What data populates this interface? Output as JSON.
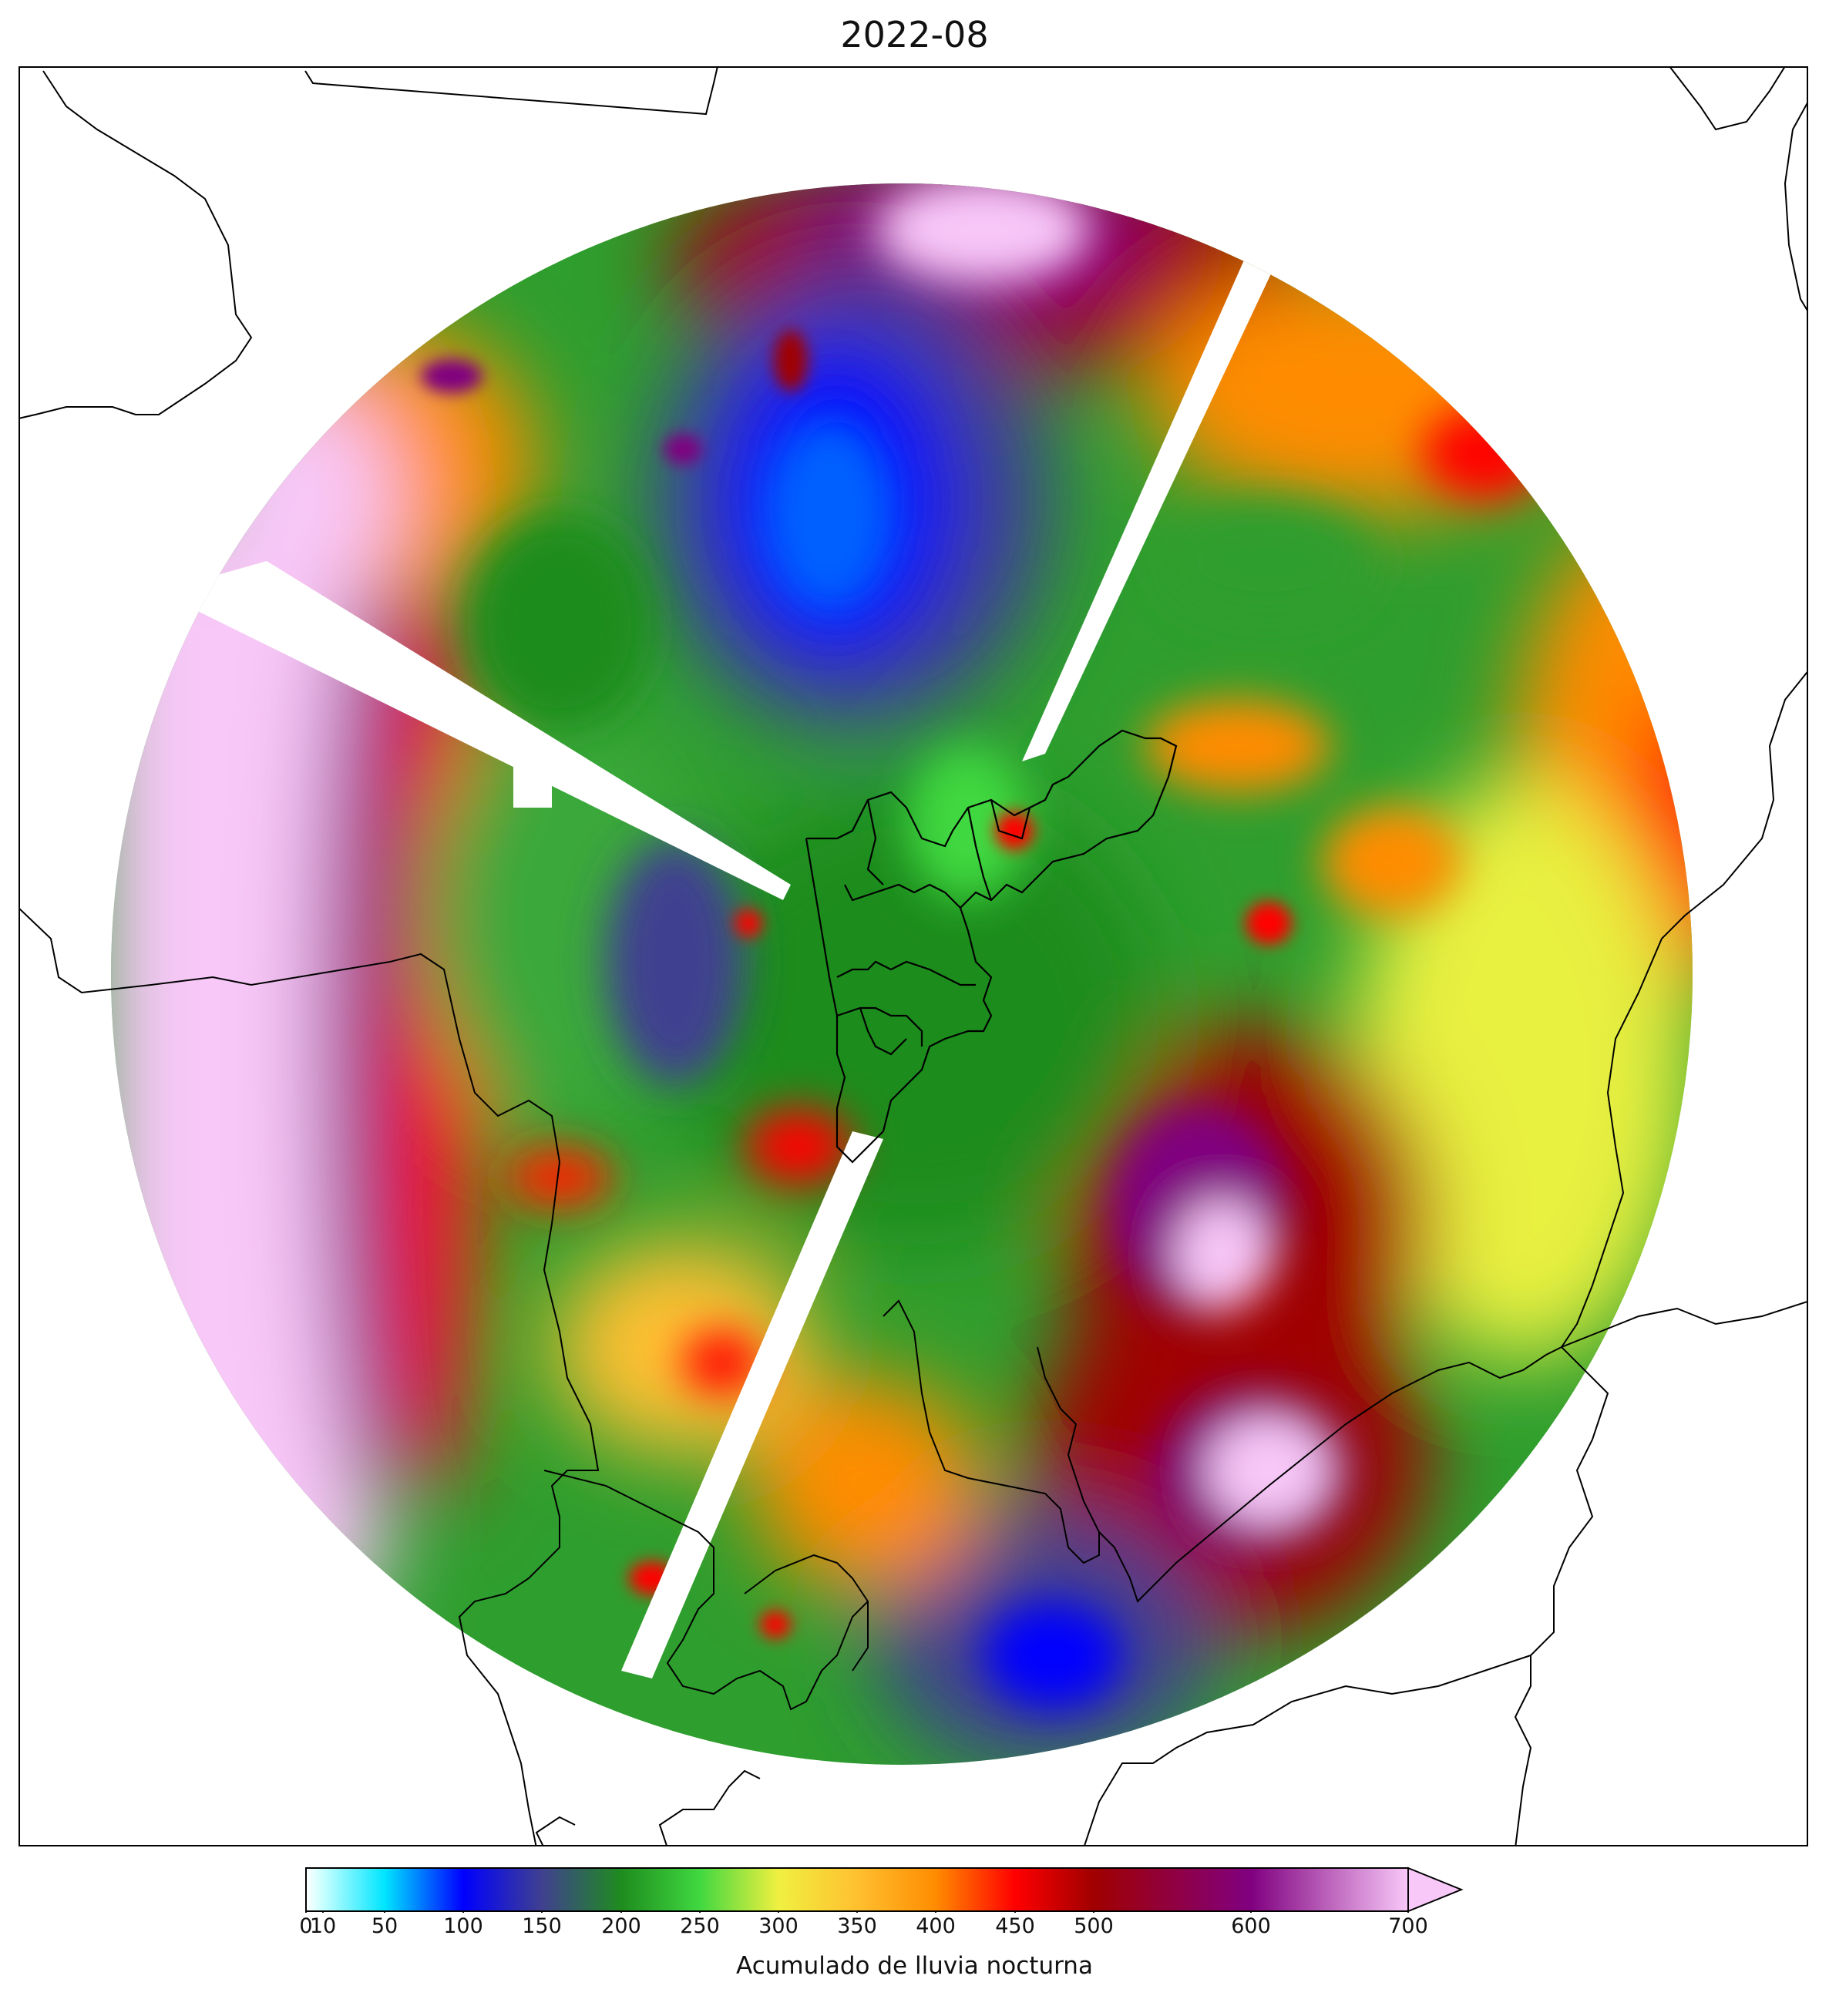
{
  "title": "2022-08",
  "colorbar": {
    "label": "Acumulado de lluvia nocturna",
    "ticks": [
      "0",
      "10",
      "50",
      "100",
      "150",
      "200",
      "250",
      "300",
      "350",
      "400",
      "450",
      "500",
      "600",
      "700"
    ],
    "extend": "max",
    "over_color": "#f8c8f8"
  },
  "map": {
    "type": "radar accumulated rainfall",
    "color_stops": [
      {
        "value": 0,
        "color": "#ffffff"
      },
      {
        "value": 10,
        "color": "#c8ffff"
      },
      {
        "value": 50,
        "color": "#00e5ff"
      },
      {
        "value": 100,
        "color": "#0000ff"
      },
      {
        "value": 150,
        "color": "#404090"
      },
      {
        "value": 200,
        "color": "#1e8c1e"
      },
      {
        "value": 250,
        "color": "#40d840"
      },
      {
        "value": 300,
        "color": "#f0f040"
      },
      {
        "value": 350,
        "color": "#ffc030"
      },
      {
        "value": 400,
        "color": "#ff8c00"
      },
      {
        "value": 450,
        "color": "#ff0000"
      },
      {
        "value": 500,
        "color": "#a00000"
      },
      {
        "value": 600,
        "color": "#800080"
      },
      {
        "value": 700,
        "color": "#f8c8f8"
      }
    ]
  }
}
